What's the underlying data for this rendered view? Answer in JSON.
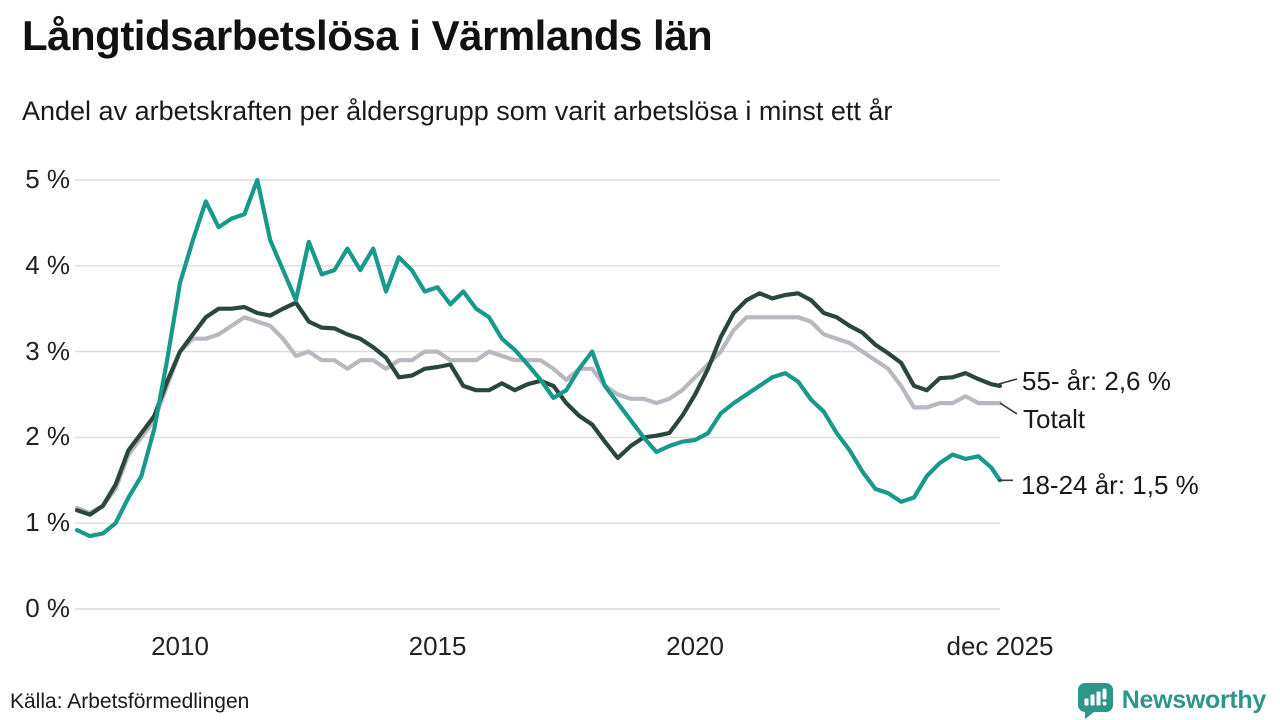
{
  "header": {
    "title": "Långtidsarbetslösa i Värmlands län",
    "subtitle": "Andel av arbetskraften per åldersgrupp som varit arbetslösa i minst ett år"
  },
  "chart_data": {
    "type": "line",
    "title": "Långtidsarbetslösa i Värmlands län",
    "subtitle": "Andel av arbetskraften per åldersgrupp som varit arbetslösa i minst ett år",
    "xlabel": "",
    "ylabel": "",
    "xlim": [
      2008,
      2025.92
    ],
    "ylim": [
      0,
      5
    ],
    "grid": true,
    "legend_position": "right-end-labels",
    "x_years": [
      2008,
      2008.25,
      2008.5,
      2008.75,
      2009,
      2009.25,
      2009.5,
      2009.75,
      2010,
      2010.25,
      2010.5,
      2010.75,
      2011,
      2011.25,
      2011.5,
      2011.75,
      2012,
      2012.25,
      2012.5,
      2012.75,
      2013,
      2013.25,
      2013.5,
      2013.75,
      2014,
      2014.25,
      2014.5,
      2014.75,
      2015,
      2015.25,
      2015.5,
      2015.75,
      2016,
      2016.25,
      2016.5,
      2016.75,
      2017,
      2017.25,
      2017.5,
      2017.75,
      2018,
      2018.25,
      2018.5,
      2018.75,
      2019,
      2019.25,
      2019.5,
      2019.75,
      2020,
      2020.25,
      2020.5,
      2020.75,
      2021,
      2021.25,
      2021.5,
      2021.75,
      2022,
      2022.25,
      2022.5,
      2022.75,
      2023,
      2023.25,
      2023.5,
      2023.75,
      2024,
      2024.25,
      2024.5,
      2024.75,
      2025,
      2025.25,
      2025.5,
      2025.75,
      2025.92
    ],
    "series": [
      {
        "id": "totalt",
        "name": "Totalt",
        "color": "#b9b7c0",
        "end_label": "Totalt",
        "end_value": 2.4,
        "values": [
          1.18,
          1.12,
          1.2,
          1.4,
          1.8,
          2.0,
          2.2,
          2.6,
          3.0,
          3.15,
          3.15,
          3.2,
          3.3,
          3.4,
          3.35,
          3.3,
          3.15,
          2.95,
          3.0,
          2.9,
          2.9,
          2.8,
          2.9,
          2.9,
          2.8,
          2.9,
          2.9,
          3.0,
          3.0,
          2.9,
          2.9,
          2.9,
          3.0,
          2.95,
          2.9,
          2.9,
          2.9,
          2.8,
          2.67,
          2.8,
          2.8,
          2.6,
          2.5,
          2.45,
          2.45,
          2.4,
          2.45,
          2.55,
          2.7,
          2.85,
          3.0,
          3.25,
          3.4,
          3.4,
          3.4,
          3.4,
          3.4,
          3.35,
          3.2,
          3.15,
          3.1,
          3.0,
          2.9,
          2.8,
          2.6,
          2.35,
          2.35,
          2.4,
          2.4,
          2.48,
          2.4,
          2.4,
          2.4
        ]
      },
      {
        "id": "55",
        "name": "55- år",
        "color": "#2b463d",
        "end_label": "55- år: 2,6 %",
        "end_value": 2.6,
        "values": [
          1.15,
          1.1,
          1.2,
          1.45,
          1.85,
          2.05,
          2.25,
          2.65,
          3.0,
          3.2,
          3.4,
          3.5,
          3.5,
          3.52,
          3.45,
          3.42,
          3.5,
          3.57,
          3.35,
          3.28,
          3.27,
          3.2,
          3.15,
          3.05,
          2.93,
          2.7,
          2.72,
          2.8,
          2.82,
          2.85,
          2.6,
          2.55,
          2.55,
          2.63,
          2.55,
          2.62,
          2.66,
          2.6,
          2.4,
          2.25,
          2.15,
          1.95,
          1.76,
          1.9,
          2.0,
          2.02,
          2.05,
          2.25,
          2.5,
          2.8,
          3.17,
          3.45,
          3.6,
          3.68,
          3.62,
          3.66,
          3.68,
          3.6,
          3.45,
          3.4,
          3.3,
          3.22,
          3.08,
          2.98,
          2.87,
          2.6,
          2.55,
          2.69,
          2.7,
          2.75,
          2.68,
          2.62,
          2.6
        ]
      },
      {
        "id": "1824",
        "name": "18-24 år",
        "color": "#189a8a",
        "end_label": "18-24 år: 1,5 %",
        "end_value": 1.5,
        "values": [
          0.92,
          0.85,
          0.88,
          1.0,
          1.3,
          1.55,
          2.1,
          2.9,
          3.8,
          4.3,
          4.75,
          4.45,
          4.55,
          4.6,
          5.0,
          4.3,
          3.95,
          3.6,
          4.28,
          3.9,
          3.95,
          4.2,
          3.95,
          4.2,
          3.7,
          4.1,
          3.95,
          3.7,
          3.75,
          3.55,
          3.7,
          3.5,
          3.4,
          3.15,
          3.02,
          2.85,
          2.67,
          2.46,
          2.55,
          2.8,
          3.0,
          2.6,
          2.4,
          2.2,
          2.0,
          1.83,
          1.9,
          1.95,
          1.97,
          2.05,
          2.28,
          2.4,
          2.5,
          2.6,
          2.7,
          2.75,
          2.65,
          2.44,
          2.3,
          2.05,
          1.85,
          1.6,
          1.4,
          1.35,
          1.25,
          1.3,
          1.55,
          1.7,
          1.8,
          1.75,
          1.78,
          1.65,
          1.5
        ]
      }
    ],
    "y_ticks": [
      {
        "value": 0,
        "label": "0 %"
      },
      {
        "value": 1,
        "label": "1 %"
      },
      {
        "value": 2,
        "label": "2 %"
      },
      {
        "value": 3,
        "label": "3 %"
      },
      {
        "value": 4,
        "label": "4 %"
      },
      {
        "value": 5,
        "label": "5 %"
      }
    ],
    "x_ticks": [
      {
        "year": 2010,
        "label": "2010"
      },
      {
        "year": 2015,
        "label": "2015"
      },
      {
        "year": 2020,
        "label": "2020"
      },
      {
        "year": 2025.92,
        "label": "dec 2025"
      }
    ],
    "colors": {
      "grid": "#dcdcdc",
      "connector": "#3a3a3a"
    }
  },
  "footer": {
    "source": "Källa: Arbetsförmedlingen",
    "brand": "Newsworthy",
    "brand_color": "#2e9688"
  }
}
